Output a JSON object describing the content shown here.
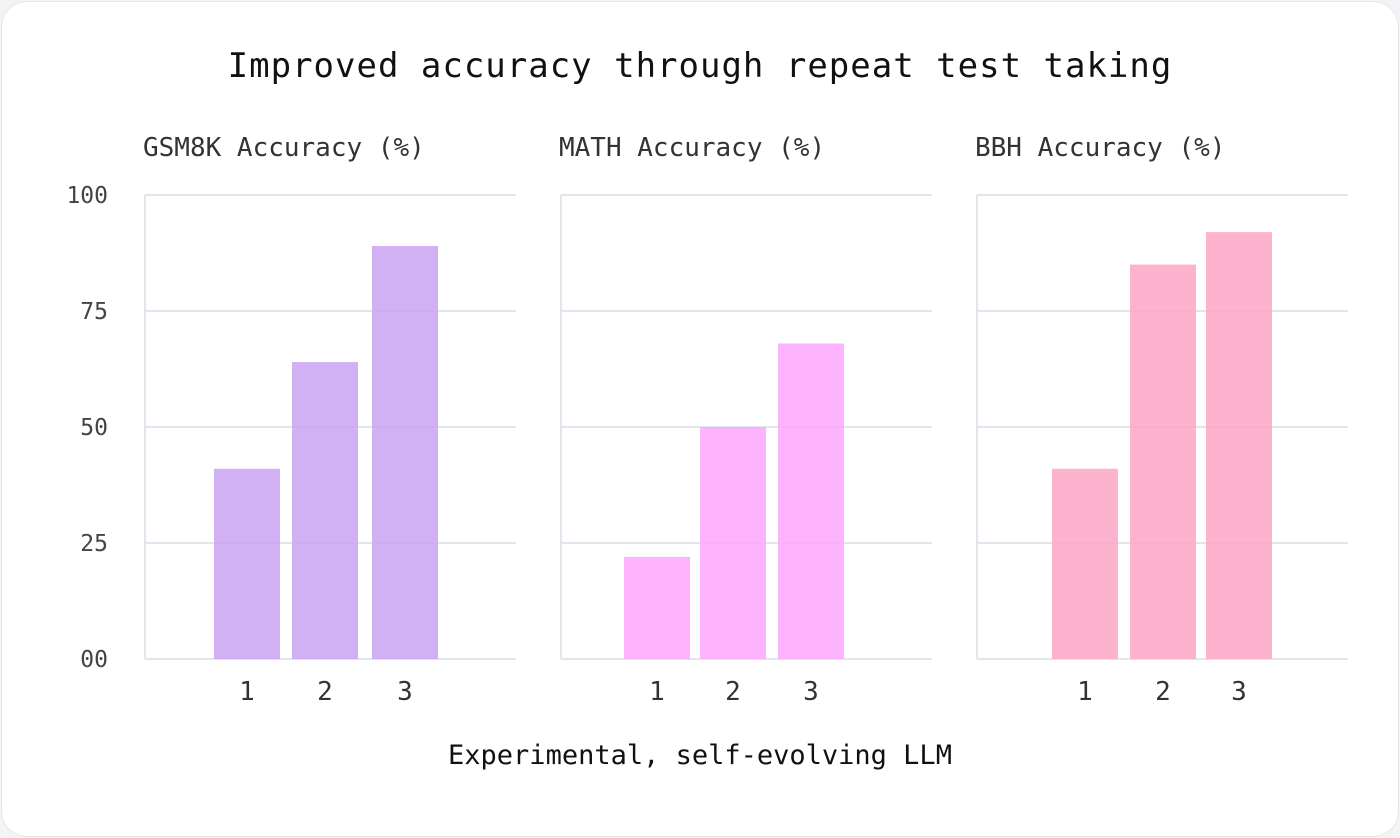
{
  "chart_data": {
    "type": "bar",
    "title": "Improved accuracy through repeat test taking",
    "xlabel": "Experimental, self-evolving LLM",
    "categories": [
      "1",
      "2",
      "3"
    ],
    "ylim": [
      0,
      100
    ],
    "yticks": [
      "00",
      "25",
      "50",
      "75",
      "100"
    ],
    "ytick_values": [
      0,
      25,
      50,
      75,
      100
    ],
    "grid": true,
    "panels": [
      {
        "subtitle": "GSM8K Accuracy (%)",
        "values": [
          41,
          64,
          89
        ],
        "color": "#c9a2f2"
      },
      {
        "subtitle": "MATH Accuracy (%)",
        "values": [
          22,
          50,
          68
        ],
        "color": "#fda6fd"
      },
      {
        "subtitle": "BBH Accuracy (%)",
        "values": [
          41,
          85,
          92
        ],
        "color": "#fda4c4"
      }
    ]
  }
}
